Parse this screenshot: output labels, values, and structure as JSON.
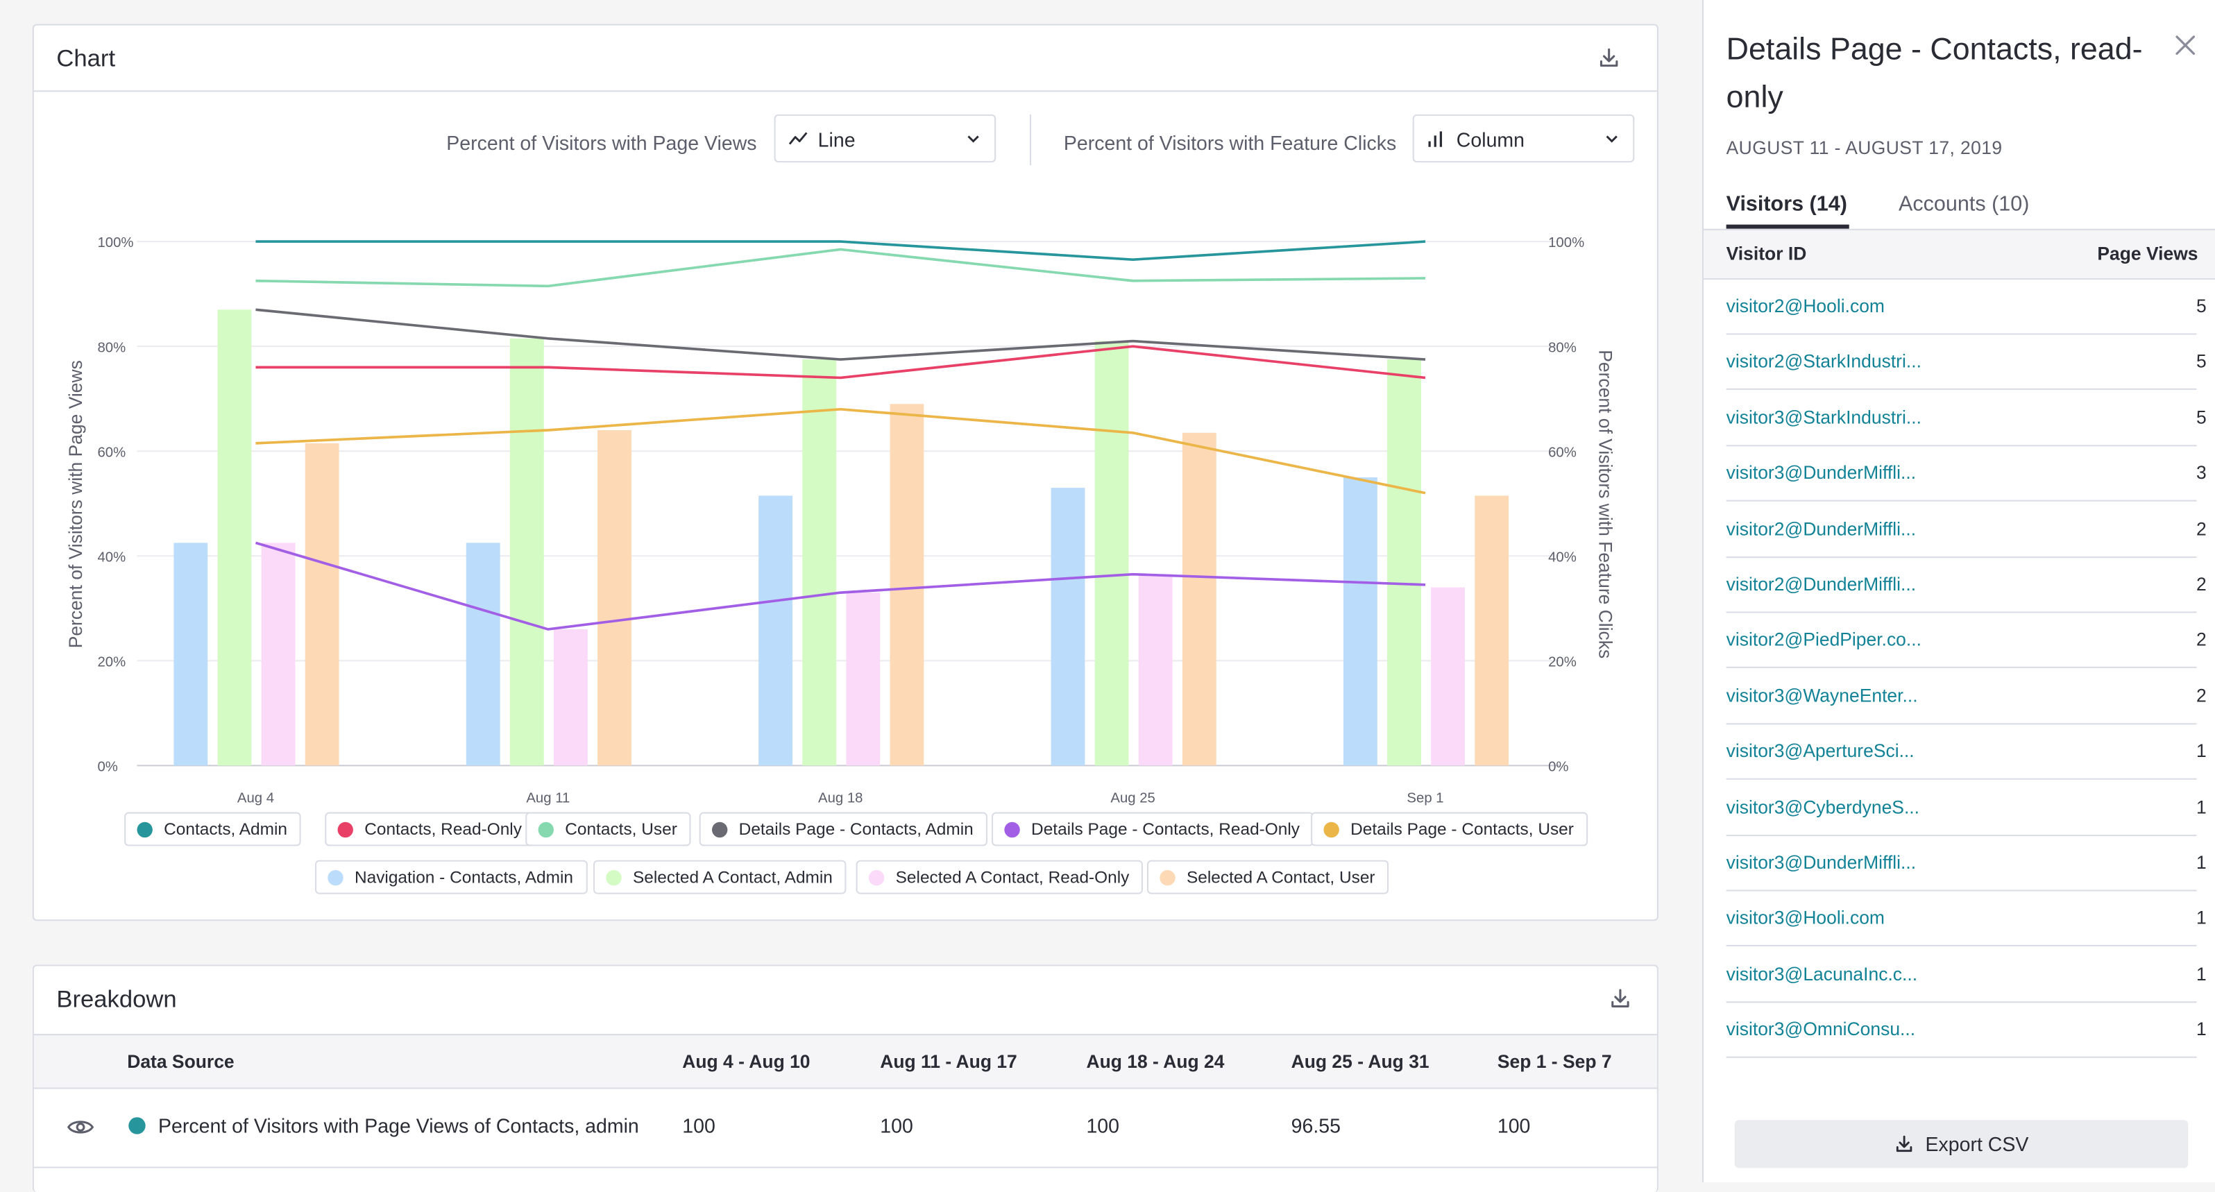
{
  "chart_card": {
    "title": "Chart",
    "download_icon": "download-icon",
    "page_views_label": "Percent of Visitors with Page Views",
    "page_views_type": "Line",
    "feature_clicks_label": "Percent of Visitors with Feature Clicks",
    "feature_clicks_type": "Column"
  },
  "chart_data": {
    "type": "bar",
    "categories": [
      "Aug 4",
      "Aug 11",
      "Aug 18",
      "Aug 25",
      "Sep 1"
    ],
    "ylabel": "Percent of Visitors with Page Views",
    "y2label": "Percent of Visitors with Feature Clicks",
    "ylim": [
      0,
      100
    ],
    "y2lim": [
      0,
      100
    ],
    "y_ticks": [
      "0%",
      "20%",
      "40%",
      "60%",
      "80%",
      "100%"
    ],
    "grid": true,
    "legend_position": "bottom",
    "series": [
      {
        "name": "Contacts, Admin",
        "kind": "line",
        "color": "#26959c",
        "values": [
          100,
          100,
          100,
          96.55,
          100
        ]
      },
      {
        "name": "Contacts, Read-Only",
        "kind": "line",
        "color": "#e94067",
        "values": [
          76,
          76,
          74,
          80,
          74
        ]
      },
      {
        "name": "Contacts, User",
        "kind": "line",
        "color": "#86d9ae",
        "values": [
          92.5,
          91.5,
          98.5,
          92.5,
          93
        ]
      },
      {
        "name": "Details Page - Contacts, Admin",
        "kind": "line",
        "color": "#6a6b72",
        "values": [
          87,
          81.5,
          77.5,
          81,
          77.5
        ]
      },
      {
        "name": "Details Page - Contacts, Read-Only",
        "kind": "line",
        "color": "#a25fe6",
        "values": [
          42.5,
          26,
          33,
          36.5,
          34.5
        ]
      },
      {
        "name": "Details Page - Contacts, User",
        "kind": "line",
        "color": "#ebb548",
        "values": [
          61.5,
          64,
          68,
          63.5,
          52
        ]
      },
      {
        "name": "Navigation - Contacts, Admin",
        "kind": "column",
        "color": "#bcdcfc",
        "values": [
          42.5,
          42.5,
          51.5,
          53,
          55
        ]
      },
      {
        "name": "Selected A Contact, Admin",
        "kind": "column",
        "color": "#d3fbc3",
        "values": [
          87,
          81.5,
          77.5,
          81,
          77.5
        ]
      },
      {
        "name": "Selected A Contact, Read-Only",
        "kind": "column",
        "color": "#fbd9f9",
        "values": [
          42.5,
          26,
          33,
          36.5,
          34
        ]
      },
      {
        "name": "Selected A Contact, User",
        "kind": "column",
        "color": "#fdd9b5",
        "values": [
          61.5,
          64,
          69,
          63.5,
          51.5
        ]
      }
    ]
  },
  "breakdown": {
    "title": "Breakdown",
    "download_icon": "download-icon",
    "columns": [
      "Data Source",
      "Aug 4 - Aug 10",
      "Aug 11 - Aug 17",
      "Aug 18 - Aug 24",
      "Aug 25 - Aug 31",
      "Sep 1 - Sep 7"
    ],
    "rows": [
      {
        "source": "Percent of Visitors with Page Views of Contacts, admin",
        "color": "#26959c",
        "values": [
          "100",
          "100",
          "100",
          "96.55",
          "100"
        ]
      }
    ]
  },
  "panel": {
    "title": "Details Page - Contacts, read-only",
    "date_range": "AUGUST 11 - AUGUST 17, 2019",
    "tabs": [
      "Visitors (14)",
      "Accounts (10)"
    ],
    "columns": [
      "Visitor ID",
      "Page Views"
    ],
    "rows": [
      {
        "id": "visitor2@Hooli.com",
        "views": "5"
      },
      {
        "id": "visitor2@StarkIndustri...",
        "views": "5"
      },
      {
        "id": "visitor3@StarkIndustri...",
        "views": "5"
      },
      {
        "id": "visitor3@DunderMiffli...",
        "views": "3"
      },
      {
        "id": "visitor2@DunderMiffli...",
        "views": "2"
      },
      {
        "id": "visitor2@DunderMiffli...",
        "views": "2"
      },
      {
        "id": "visitor2@PiedPiper.co...",
        "views": "2"
      },
      {
        "id": "visitor3@WayneEnter...",
        "views": "2"
      },
      {
        "id": "visitor3@ApertureSci...",
        "views": "1"
      },
      {
        "id": "visitor3@CyberdyneS...",
        "views": "1"
      },
      {
        "id": "visitor3@DunderMiffli...",
        "views": "1"
      },
      {
        "id": "visitor3@Hooli.com",
        "views": "1"
      },
      {
        "id": "visitor3@LacunaInc.c...",
        "views": "1"
      },
      {
        "id": "visitor3@OmniConsu...",
        "views": "1"
      }
    ],
    "export_label": "Export CSV"
  }
}
